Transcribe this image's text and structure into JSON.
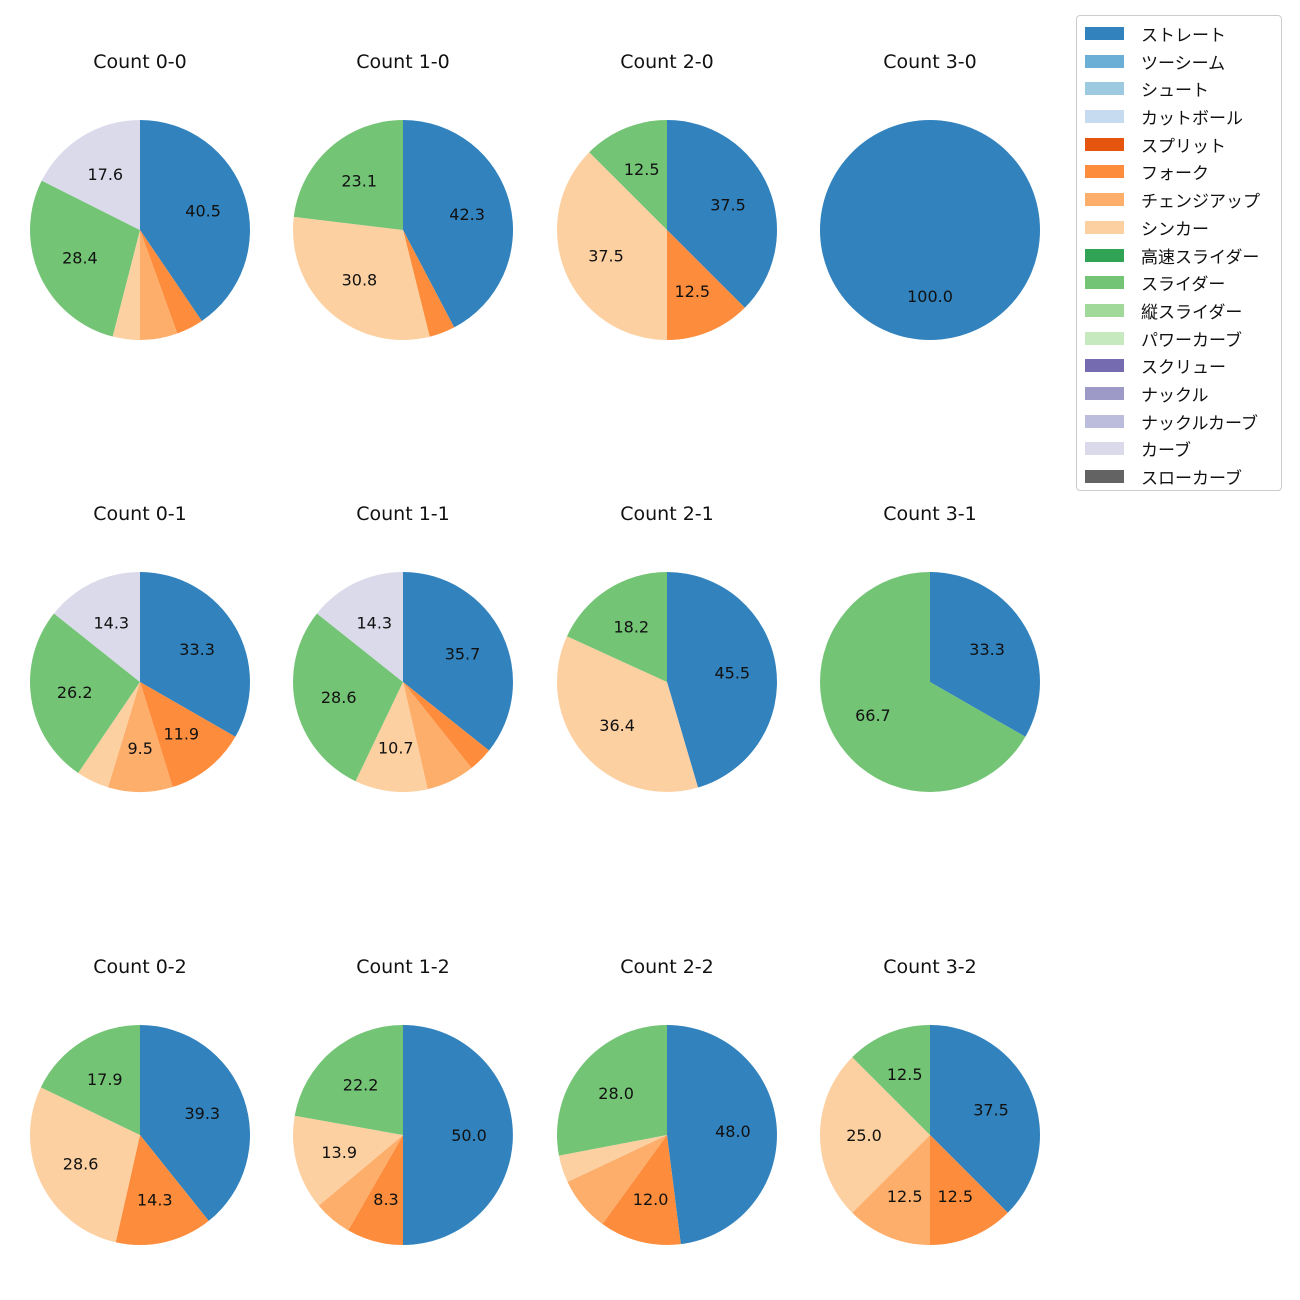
{
  "colors": {
    "ストレート": "#3182bd",
    "ツーシーム": "#6baed6",
    "シュート": "#9ecae1",
    "カットボール": "#c6dbef",
    "スプリット": "#e6550d",
    "フォーク": "#fd8d3c",
    "チェンジアップ": "#fdae6b",
    "シンカー": "#fdd0a2",
    "高速スライダー": "#31a354",
    "スライダー": "#74c476",
    "縦スライダー": "#a1d99b",
    "パワーカーブ": "#c7e9c0",
    "スクリュー": "#756bb1",
    "ナックル": "#9e9ac8",
    "ナックルカーブ": "#bcbddc",
    "カーブ": "#dadaeb",
    "スローカーブ": "#636363"
  },
  "legend": {
    "placement": "upper-right",
    "items": [
      "ストレート",
      "ツーシーム",
      "シュート",
      "カットボール",
      "スプリット",
      "フォーク",
      "チェンジアップ",
      "シンカー",
      "高速スライダー",
      "スライダー",
      "縦スライダー",
      "パワーカーブ",
      "スクリュー",
      "ナックル",
      "ナックルカーブ",
      "カーブ",
      "スローカーブ"
    ]
  },
  "chart_data": [
    {
      "type": "pie",
      "title": "Count 0-0",
      "slices": [
        {
          "name": "ストレート",
          "value": 40.5,
          "label": "40.5"
        },
        {
          "name": "フォーク",
          "value": 4.0,
          "label": ""
        },
        {
          "name": "チェンジアップ",
          "value": 5.5,
          "label": ""
        },
        {
          "name": "シンカー",
          "value": 4.0,
          "label": ""
        },
        {
          "name": "スライダー",
          "value": 28.4,
          "label": "28.4"
        },
        {
          "name": "カーブ",
          "value": 17.6,
          "label": "17.6"
        }
      ]
    },
    {
      "type": "pie",
      "title": "Count 1-0",
      "slices": [
        {
          "name": "ストレート",
          "value": 42.3,
          "label": "42.3"
        },
        {
          "name": "フォーク",
          "value": 3.8,
          "label": ""
        },
        {
          "name": "シンカー",
          "value": 30.8,
          "label": "30.8"
        },
        {
          "name": "スライダー",
          "value": 23.1,
          "label": "23.1"
        }
      ]
    },
    {
      "type": "pie",
      "title": "Count 2-0",
      "slices": [
        {
          "name": "ストレート",
          "value": 37.5,
          "label": "37.5"
        },
        {
          "name": "フォーク",
          "value": 12.5,
          "label": "12.5"
        },
        {
          "name": "シンカー",
          "value": 37.5,
          "label": "37.5"
        },
        {
          "name": "スライダー",
          "value": 12.5,
          "label": "12.5"
        }
      ]
    },
    {
      "type": "pie",
      "title": "Count 3-0",
      "slices": [
        {
          "name": "ストレート",
          "value": 100.0,
          "label": "100.0"
        }
      ]
    },
    {
      "type": "pie",
      "title": "Count 0-1",
      "slices": [
        {
          "name": "ストレート",
          "value": 33.3,
          "label": "33.3"
        },
        {
          "name": "フォーク",
          "value": 11.9,
          "label": "11.9"
        },
        {
          "name": "チェンジアップ",
          "value": 9.5,
          "label": "9.5"
        },
        {
          "name": "シンカー",
          "value": 4.8,
          "label": ""
        },
        {
          "name": "スライダー",
          "value": 26.2,
          "label": "26.2"
        },
        {
          "name": "カーブ",
          "value": 14.3,
          "label": "14.3"
        }
      ]
    },
    {
      "type": "pie",
      "title": "Count 1-1",
      "slices": [
        {
          "name": "ストレート",
          "value": 35.7,
          "label": "35.7"
        },
        {
          "name": "フォーク",
          "value": 3.6,
          "label": ""
        },
        {
          "name": "チェンジアップ",
          "value": 7.1,
          "label": ""
        },
        {
          "name": "シンカー",
          "value": 10.7,
          "label": "10.7"
        },
        {
          "name": "スライダー",
          "value": 28.6,
          "label": "28.6"
        },
        {
          "name": "カーブ",
          "value": 14.3,
          "label": "14.3"
        }
      ]
    },
    {
      "type": "pie",
      "title": "Count 2-1",
      "slices": [
        {
          "name": "ストレート",
          "value": 45.5,
          "label": "45.5"
        },
        {
          "name": "シンカー",
          "value": 36.4,
          "label": "36.4"
        },
        {
          "name": "スライダー",
          "value": 18.2,
          "label": "18.2"
        }
      ]
    },
    {
      "type": "pie",
      "title": "Count 3-1",
      "slices": [
        {
          "name": "ストレート",
          "value": 33.3,
          "label": "33.3"
        },
        {
          "name": "スライダー",
          "value": 66.7,
          "label": "66.7"
        }
      ]
    },
    {
      "type": "pie",
      "title": "Count 0-2",
      "slices": [
        {
          "name": "ストレート",
          "value": 39.3,
          "label": "39.3"
        },
        {
          "name": "フォーク",
          "value": 14.3,
          "label": "14.3"
        },
        {
          "name": "シンカー",
          "value": 28.6,
          "label": "28.6"
        },
        {
          "name": "スライダー",
          "value": 17.9,
          "label": "17.9"
        }
      ]
    },
    {
      "type": "pie",
      "title": "Count 1-2",
      "slices": [
        {
          "name": "ストレート",
          "value": 50.0,
          "label": "50.0"
        },
        {
          "name": "フォーク",
          "value": 8.3,
          "label": "8.3"
        },
        {
          "name": "チェンジアップ",
          "value": 5.6,
          "label": ""
        },
        {
          "name": "シンカー",
          "value": 13.9,
          "label": "13.9"
        },
        {
          "name": "スライダー",
          "value": 22.2,
          "label": "22.2"
        }
      ]
    },
    {
      "type": "pie",
      "title": "Count 2-2",
      "slices": [
        {
          "name": "ストレート",
          "value": 48.0,
          "label": "48.0"
        },
        {
          "name": "フォーク",
          "value": 12.0,
          "label": "12.0"
        },
        {
          "name": "チェンジアップ",
          "value": 8.0,
          "label": ""
        },
        {
          "name": "シンカー",
          "value": 4.0,
          "label": ""
        },
        {
          "name": "スライダー",
          "value": 28.0,
          "label": "28.0"
        }
      ]
    },
    {
      "type": "pie",
      "title": "Count 3-2",
      "slices": [
        {
          "name": "ストレート",
          "value": 37.5,
          "label": "37.5"
        },
        {
          "name": "フォーク",
          "value": 12.5,
          "label": "12.5"
        },
        {
          "name": "チェンジアップ",
          "value": 12.5,
          "label": "12.5"
        },
        {
          "name": "シンカー",
          "value": 25.0,
          "label": "25.0"
        },
        {
          "name": "スライダー",
          "value": 12.5,
          "label": "12.5"
        }
      ]
    }
  ]
}
